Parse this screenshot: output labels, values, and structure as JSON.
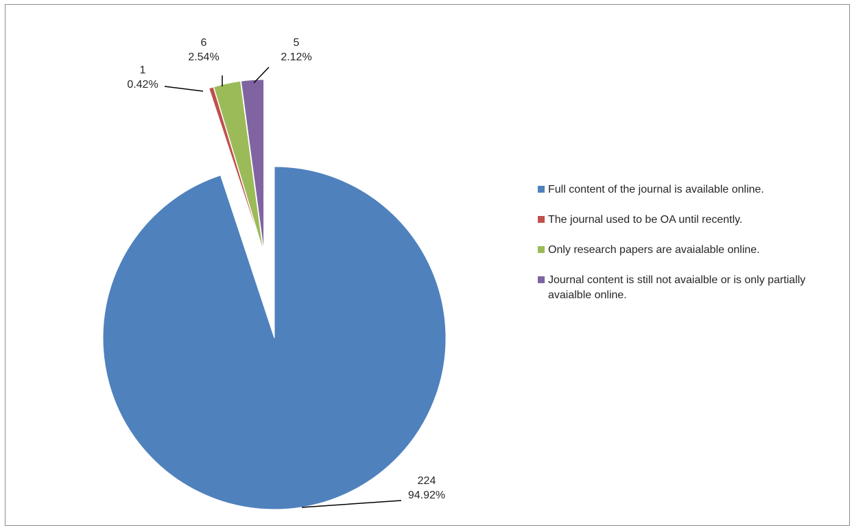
{
  "chart_data": {
    "type": "pie",
    "title": "",
    "slices": [
      {
        "label": "Full content of the journal is available online.",
        "value": 224,
        "percent": "94.92%",
        "color": "#4F81BD"
      },
      {
        "label": "The journal used to be OA until recently.",
        "value": 1,
        "percent": "0.42%",
        "color": "#C0504D"
      },
      {
        "label": "Only research papers are avaialable online.",
        "value": 6,
        "percent": "2.54%",
        "color": "#9BBB59"
      },
      {
        "label": "Journal content is still not avaialble or is only partially avaialble online.",
        "value": 5,
        "percent": "2.12%",
        "color": "#8064A2"
      }
    ],
    "legend_position": "right",
    "exploded": true
  }
}
